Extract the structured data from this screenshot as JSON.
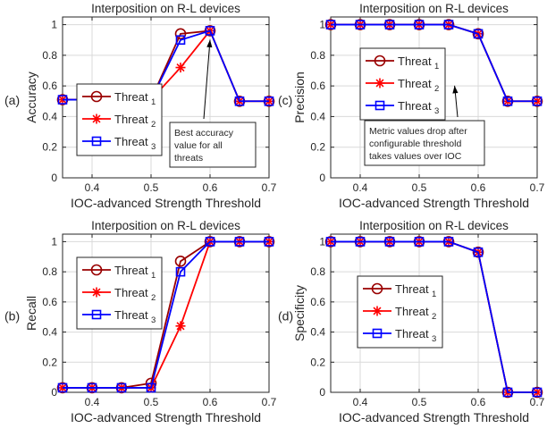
{
  "chart_data": [
    {
      "type": "line",
      "panel_label": "(a)",
      "title": "Interposition on R-L devices",
      "xlabel": "IOC-advanced Strength Threshold",
      "ylabel": "Accuracy",
      "xlim": [
        0.35,
        0.7
      ],
      "ylim": [
        0,
        1.05
      ],
      "xticks": [
        "0.4",
        "0.5",
        "0.6",
        "0.7"
      ],
      "yticks": [
        "0",
        "0.2",
        "0.4",
        "0.6",
        "0.8",
        "1"
      ],
      "grid": true,
      "legend_position": "middle-left",
      "x": [
        0.35,
        0.4,
        0.45,
        0.5,
        0.55,
        0.6,
        0.65,
        0.7
      ],
      "series": [
        {
          "name": "Threat",
          "sub": "1",
          "color": "#990000",
          "marker": "circle",
          "values": [
            0.51,
            0.51,
            0.51,
            0.51,
            0.94,
            0.96,
            0.5,
            0.5
          ]
        },
        {
          "name": "Threat",
          "sub": "2",
          "color": "#ff0000",
          "marker": "asterisk",
          "values": [
            0.51,
            0.51,
            0.51,
            0.51,
            0.72,
            0.96,
            0.5,
            0.5
          ]
        },
        {
          "name": "Threat",
          "sub": "3",
          "color": "#0000ff",
          "marker": "square",
          "values": [
            0.51,
            0.51,
            0.51,
            0.51,
            0.9,
            0.96,
            0.5,
            0.5
          ]
        }
      ],
      "annotation": {
        "lines": [
          "Best accuracy",
          "value for all",
          "threats"
        ],
        "arrow_to": [
          0.6,
          0.96
        ]
      }
    },
    {
      "type": "line",
      "panel_label": "(c)",
      "title": "Interposition on R-L devices",
      "xlabel": "IOC-advanced Strength Threshold",
      "ylabel": "Precision",
      "xlim": [
        0.35,
        0.7
      ],
      "ylim": [
        0,
        1.05
      ],
      "xticks": [
        "0.4",
        "0.5",
        "0.6",
        "0.7"
      ],
      "yticks": [
        "0",
        "0.2",
        "0.4",
        "0.6",
        "0.8",
        "1"
      ],
      "grid": true,
      "legend_position": "top-left",
      "x": [
        0.35,
        0.4,
        0.45,
        0.5,
        0.55,
        0.6,
        0.65,
        0.7
      ],
      "series": [
        {
          "name": "Threat",
          "sub": "1",
          "color": "#990000",
          "marker": "circle",
          "values": [
            1.0,
            1.0,
            1.0,
            1.0,
            1.0,
            0.94,
            0.5,
            0.5
          ]
        },
        {
          "name": "Threat",
          "sub": "2",
          "color": "#ff0000",
          "marker": "asterisk",
          "values": [
            1.0,
            1.0,
            1.0,
            1.0,
            1.0,
            0.94,
            0.5,
            0.5
          ]
        },
        {
          "name": "Threat",
          "sub": "3",
          "color": "#0000ff",
          "marker": "square",
          "values": [
            1.0,
            1.0,
            1.0,
            1.0,
            1.0,
            0.94,
            0.5,
            0.5
          ]
        }
      ],
      "annotation": {
        "lines": [
          "Metric values drop after",
          "configurable threshold",
          "takes values over IOC"
        ],
        "arrow_to": [
          0.56,
          0.66
        ]
      }
    },
    {
      "type": "line",
      "panel_label": "(b)",
      "title": "Interposition on R-L devices",
      "xlabel": "IOC-advanced Strength Threshold",
      "ylabel": "Recall",
      "xlim": [
        0.35,
        0.7
      ],
      "ylim": [
        0,
        1.05
      ],
      "xticks": [
        "0.4",
        "0.5",
        "0.6",
        "0.7"
      ],
      "yticks": [
        "0",
        "0.2",
        "0.4",
        "0.6",
        "0.8",
        "1"
      ],
      "grid": true,
      "legend_position": "top-left",
      "x": [
        0.35,
        0.4,
        0.45,
        0.5,
        0.55,
        0.6,
        0.65,
        0.7
      ],
      "series": [
        {
          "name": "Threat",
          "sub": "1",
          "color": "#990000",
          "marker": "circle",
          "values": [
            0.03,
            0.03,
            0.03,
            0.06,
            0.87,
            1.0,
            1.0,
            1.0
          ]
        },
        {
          "name": "Threat",
          "sub": "2",
          "color": "#ff0000",
          "marker": "asterisk",
          "values": [
            0.03,
            0.03,
            0.03,
            0.03,
            0.44,
            1.0,
            1.0,
            1.0
          ]
        },
        {
          "name": "Threat",
          "sub": "3",
          "color": "#0000ff",
          "marker": "square",
          "values": [
            0.03,
            0.03,
            0.03,
            0.03,
            0.8,
            1.0,
            1.0,
            1.0
          ]
        }
      ]
    },
    {
      "type": "line",
      "panel_label": "(d)",
      "title": "Interposition on R-L devices",
      "xlabel": "IOC-advanced Strength Threshold",
      "ylabel": "Specificity",
      "xlim": [
        0.35,
        0.7
      ],
      "ylim": [
        0,
        1.05
      ],
      "xticks": [
        "0.4",
        "0.5",
        "0.6",
        "0.7"
      ],
      "yticks": [
        "0",
        "0.2",
        "0.4",
        "0.6",
        "0.8",
        "1"
      ],
      "grid": true,
      "legend_position": "middle-left",
      "x": [
        0.35,
        0.4,
        0.45,
        0.5,
        0.55,
        0.6,
        0.65,
        0.7
      ],
      "series": [
        {
          "name": "Threat",
          "sub": "1",
          "color": "#990000",
          "marker": "circle",
          "values": [
            1.0,
            1.0,
            1.0,
            1.0,
            1.0,
            0.93,
            0.0,
            0.0
          ]
        },
        {
          "name": "Threat",
          "sub": "2",
          "color": "#ff0000",
          "marker": "asterisk",
          "values": [
            1.0,
            1.0,
            1.0,
            1.0,
            1.0,
            0.93,
            0.0,
            0.0
          ]
        },
        {
          "name": "Threat",
          "sub": "3",
          "color": "#0000ff",
          "marker": "square",
          "values": [
            1.0,
            1.0,
            1.0,
            1.0,
            1.0,
            0.93,
            0.0,
            0.0
          ]
        }
      ]
    }
  ]
}
